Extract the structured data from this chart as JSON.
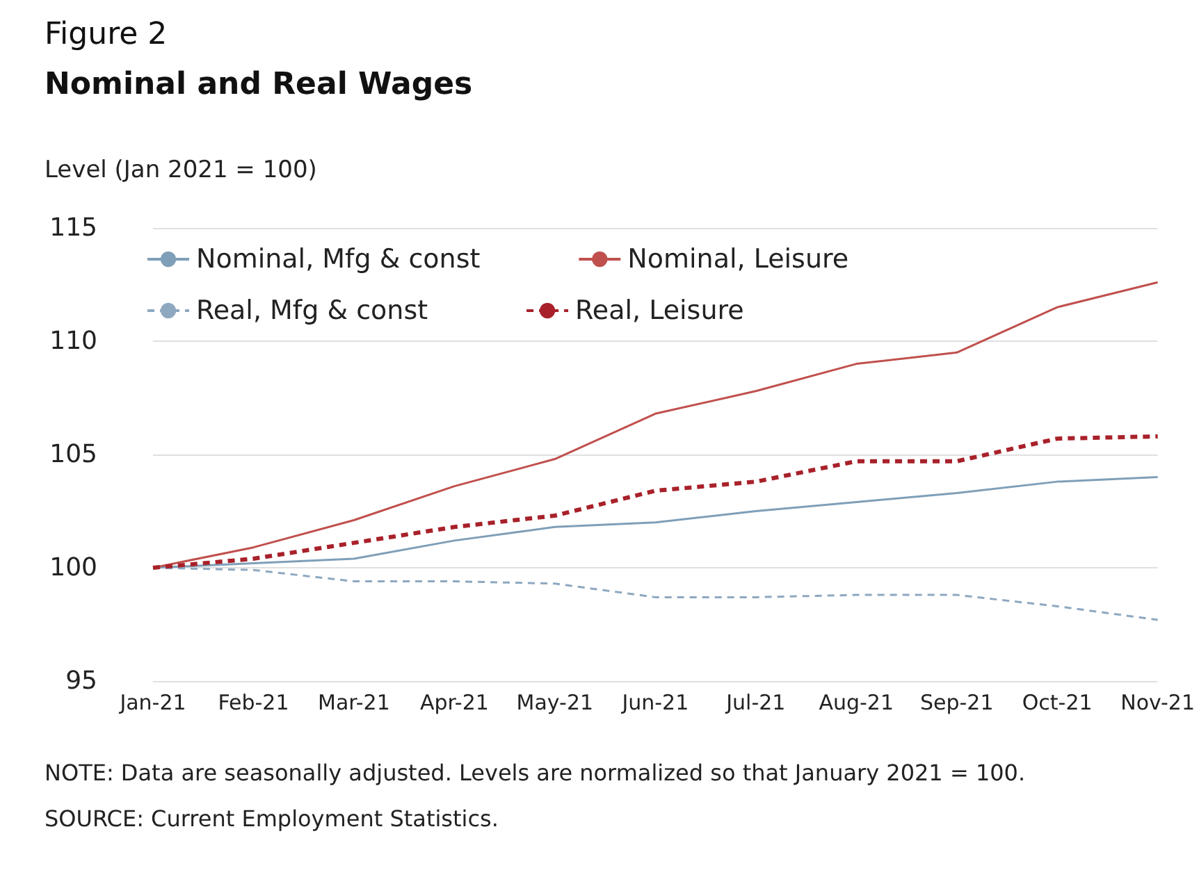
{
  "chart_data": {
    "type": "line",
    "title": "Figure 2",
    "subtitle": "Nominal and Real Wages",
    "ylabel": "Level (Jan 2021 = 100)",
    "annotations": [
      "NOTE: Data are seasonally adjusted. Levels are normalized so that January 2021 = 100.",
      "SOURCE: Current Employment Statistics."
    ],
    "categories": [
      "Jan-21",
      "Feb-21",
      "Mar-21",
      "Apr-21",
      "May-21",
      "Jun-21",
      "Jul-21",
      "Aug-21",
      "Sep-21",
      "Oct-21",
      "Nov-21"
    ],
    "series": [
      {
        "name": "Nominal, Mfg & const",
        "color": "#7f9fb8",
        "line_style": "solid",
        "values": [
          100,
          100.2,
          100.4,
          101.2,
          101.8,
          102.0,
          102.5,
          102.9,
          103.3,
          103.8,
          104.0
        ]
      },
      {
        "name": "Nominal, Leisure",
        "color": "#c0504d",
        "line_style": "solid",
        "values": [
          100,
          100.9,
          102.1,
          103.6,
          104.8,
          106.8,
          107.8,
          109.0,
          109.5,
          111.5,
          112.6
        ]
      },
      {
        "name": "Real, Mfg & const",
        "color": "#8ea8c0",
        "line_style": "dashed",
        "values": [
          100,
          99.9,
          99.4,
          99.4,
          99.3,
          98.7,
          98.7,
          98.8,
          98.8,
          98.3,
          97.7
        ]
      },
      {
        "name": "Real, Leisure",
        "color": "#a8212a",
        "line_style": "dashed",
        "values": [
          100,
          100.4,
          101.1,
          101.8,
          102.3,
          103.4,
          103.8,
          104.7,
          104.7,
          105.7,
          105.8
        ]
      }
    ],
    "ylim": [
      95,
      115
    ],
    "yticks": [
      95,
      100,
      105,
      110,
      115
    ],
    "grid": "y",
    "legend": "top left",
    "marker": "none"
  }
}
